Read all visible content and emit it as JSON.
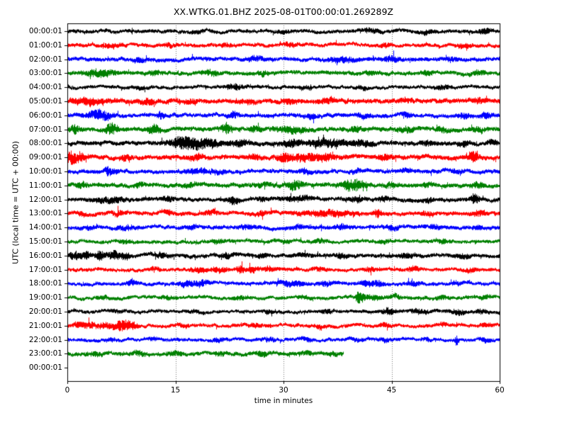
{
  "chart_data": {
    "type": "line",
    "subtype": "seismogram-dayplot",
    "title": "XX.WTKG.01.BHZ 2025-08-01T00:00:01.269289Z",
    "xlabel": "time in minutes",
    "ylabel": "UTC (local time = UTC + 00:00)",
    "xlim": [
      0,
      60
    ],
    "x_ticks": [
      0,
      15,
      30,
      45,
      60
    ],
    "grid": {
      "vertical_dotted_at": [
        15,
        30,
        45
      ]
    },
    "color_cycle": [
      "#000000",
      "#ff0000",
      "#0000ff",
      "#008000"
    ],
    "interval_minutes": 60,
    "final_tick_label": "00:00:01",
    "rows": [
      {
        "label": "00:00:01",
        "color": "#000000",
        "end": 60,
        "base": 2.6,
        "events": [
          [
            18,
            0.6,
            1.2
          ],
          [
            30,
            0.6,
            1.2
          ],
          [
            42,
            0.8,
            2
          ],
          [
            50,
            0.6,
            2
          ],
          [
            58,
            0.5,
            3
          ]
        ]
      },
      {
        "label": "01:00:01",
        "color": "#ff0000",
        "end": 60,
        "base": 2.6,
        "events": [
          [
            6,
            0.8,
            2.5
          ],
          [
            14,
            0.5,
            2
          ],
          [
            22,
            0.6,
            1.5
          ],
          [
            31,
            0.6,
            2
          ],
          [
            44,
            0.5,
            2
          ],
          [
            55,
            0.6,
            2
          ]
        ]
      },
      {
        "label": "02:00:01",
        "color": "#0000ff",
        "end": 60,
        "base": 2.8,
        "events": [
          [
            10,
            0.6,
            2
          ],
          [
            26,
            0.7,
            2.5
          ],
          [
            38,
            1.2,
            3
          ],
          [
            45,
            0.8,
            2.5
          ],
          [
            53,
            0.6,
            2
          ]
        ]
      },
      {
        "label": "03:00:01",
        "color": "#008000",
        "end": 60,
        "base": 2.8,
        "events": [
          [
            4.5,
            1.5,
            4
          ],
          [
            12,
            0.6,
            2
          ],
          [
            20,
            0.8,
            2.5
          ],
          [
            27,
            0.6,
            2
          ],
          [
            42,
            0.6,
            2
          ],
          [
            50,
            0.5,
            2
          ],
          [
            57,
            0.6,
            2.5
          ]
        ]
      },
      {
        "label": "04:00:01",
        "color": "#000000",
        "end": 60,
        "base": 2.4,
        "events": [
          [
            10,
            0.6,
            1.5
          ],
          [
            23,
            1.0,
            2.5
          ],
          [
            33,
            0.6,
            1.5
          ],
          [
            41,
            0.6,
            1.5
          ],
          [
            52,
            0.7,
            2
          ]
        ]
      },
      {
        "label": "05:00:01",
        "color": "#ff0000",
        "end": 60,
        "base": 3.2,
        "events": [
          [
            3,
            1.5,
            3.5
          ],
          [
            11,
            0.7,
            3
          ],
          [
            17,
            0.7,
            2
          ],
          [
            25,
            0.7,
            2
          ],
          [
            31,
            0.7,
            2.5
          ],
          [
            36,
            0.8,
            2
          ],
          [
            47,
            0.6,
            1.5
          ],
          [
            57,
            0.6,
            2
          ]
        ]
      },
      {
        "label": "06:00:01",
        "color": "#0000ff",
        "end": 60,
        "base": 2.8,
        "events": [
          [
            4.5,
            1.0,
            6.5
          ],
          [
            13,
            0.3,
            5
          ],
          [
            23,
            0.5,
            3.5
          ],
          [
            34,
            0.6,
            2.5
          ],
          [
            41,
            0.6,
            2.5
          ],
          [
            47,
            0.5,
            2
          ],
          [
            55,
            0.5,
            3
          ],
          [
            58,
            0.5,
            3
          ]
        ]
      },
      {
        "label": "07:00:01",
        "color": "#008000",
        "end": 60,
        "base": 3.0,
        "events": [
          [
            1,
            0.4,
            5
          ],
          [
            6,
            0.5,
            7
          ],
          [
            12,
            0.5,
            6
          ],
          [
            22,
            0.4,
            7
          ],
          [
            26,
            0.5,
            3
          ],
          [
            31,
            1.5,
            3
          ],
          [
            40,
            0.6,
            2.5
          ],
          [
            47,
            0.7,
            3
          ],
          [
            52,
            0.6,
            2.5
          ],
          [
            57,
            0.6,
            2.5
          ]
        ]
      },
      {
        "label": "08:00:01",
        "color": "#000000",
        "end": 60,
        "base": 3.0,
        "events": [
          [
            16,
            1.2,
            7
          ],
          [
            19,
            1.5,
            5
          ],
          [
            24,
            1.0,
            3
          ],
          [
            31,
            1.0,
            3.5
          ],
          [
            36,
            2.0,
            4
          ],
          [
            41,
            1.0,
            3
          ],
          [
            50,
            0.6,
            2
          ],
          [
            55,
            0.5,
            2.5
          ],
          [
            59,
            0.4,
            3
          ]
        ]
      },
      {
        "label": "09:00:01",
        "color": "#ff0000",
        "end": 60,
        "base": 3.2,
        "events": [
          [
            0.5,
            0.6,
            6
          ],
          [
            1.8,
            0.4,
            5
          ],
          [
            8,
            0.6,
            2
          ],
          [
            18,
            0.7,
            2.5
          ],
          [
            26,
            0.5,
            2.5
          ],
          [
            30,
            0.6,
            4
          ],
          [
            33,
            1.5,
            4
          ],
          [
            36,
            0.8,
            3
          ],
          [
            44,
            0.6,
            2.5
          ],
          [
            56,
            0.3,
            6
          ],
          [
            56.6,
            0.3,
            4
          ]
        ]
      },
      {
        "label": "10:00:01",
        "color": "#0000ff",
        "end": 60,
        "base": 2.8,
        "events": [
          [
            5.5,
            0.25,
            5.5
          ],
          [
            6.2,
            0.5,
            2
          ],
          [
            18,
            1.2,
            2.5
          ],
          [
            21,
            0.8,
            2
          ],
          [
            33,
            0.6,
            2.5
          ],
          [
            40,
            0.6,
            1.5
          ],
          [
            47,
            0.6,
            1.5
          ],
          [
            54,
            0.6,
            1.5
          ]
        ]
      },
      {
        "label": "11:00:01",
        "color": "#008000",
        "end": 60,
        "base": 3.0,
        "events": [
          [
            2,
            0.5,
            2.5
          ],
          [
            10,
            0.6,
            2
          ],
          [
            17,
            0.6,
            2
          ],
          [
            27,
            0.6,
            2
          ],
          [
            31.5,
            0.8,
            5
          ],
          [
            39,
            0.8,
            5.5
          ],
          [
            40.5,
            0.8,
            4
          ],
          [
            45,
            0.6,
            2.5
          ],
          [
            50,
            0.5,
            2
          ],
          [
            57,
            0.6,
            2.5
          ]
        ]
      },
      {
        "label": "12:00:01",
        "color": "#000000",
        "end": 60,
        "base": 2.8,
        "events": [
          [
            6,
            1.2,
            3
          ],
          [
            14,
            0.6,
            2
          ],
          [
            23,
            0.5,
            4.5
          ],
          [
            27,
            0.5,
            2
          ],
          [
            32,
            1.2,
            2.5
          ],
          [
            40,
            0.8,
            2
          ],
          [
            44,
            0.5,
            2.5
          ],
          [
            50,
            0.5,
            2
          ],
          [
            56.5,
            0.4,
            5.5
          ]
        ]
      },
      {
        "label": "13:00:01",
        "color": "#ff0000",
        "end": 60,
        "base": 2.8,
        "events": [
          [
            2,
            0.5,
            2
          ],
          [
            7,
            0.6,
            2.5
          ],
          [
            14,
            0.5,
            1.5
          ],
          [
            20,
            0.6,
            2
          ],
          [
            27,
            0.6,
            2
          ],
          [
            36,
            2.5,
            3
          ],
          [
            43,
            0.3,
            4.5
          ],
          [
            50,
            0.6,
            2
          ],
          [
            57,
            0.6,
            2.5
          ]
        ]
      },
      {
        "label": "14:00:01",
        "color": "#0000ff",
        "end": 60,
        "base": 2.8,
        "events": [
          [
            3,
            0.6,
            1.5
          ],
          [
            8,
            0.6,
            2
          ],
          [
            17,
            0.6,
            2
          ],
          [
            25,
            0.7,
            2
          ],
          [
            32,
            0.6,
            1.5
          ],
          [
            38,
            0.7,
            2.5
          ],
          [
            45,
            0.6,
            2
          ],
          [
            51,
            0.6,
            2
          ],
          [
            57,
            0.5,
            1.5
          ]
        ]
      },
      {
        "label": "15:00:01",
        "color": "#008000",
        "end": 60,
        "base": 2.5,
        "events": [
          [
            8,
            0.6,
            1.5
          ],
          [
            21,
            0.7,
            1.8
          ],
          [
            30,
            0.6,
            1.5
          ],
          [
            35,
            0.6,
            1.8
          ],
          [
            44,
            0.6,
            1.5
          ],
          [
            52,
            0.6,
            1.8
          ]
        ]
      },
      {
        "label": "16:00:01",
        "color": "#000000",
        "end": 60,
        "base": 2.8,
        "events": [
          [
            1,
            0.5,
            4.5
          ],
          [
            2.5,
            0.4,
            4
          ],
          [
            4.5,
            0.5,
            5
          ],
          [
            6.5,
            0.5,
            5.5
          ],
          [
            8,
            0.4,
            4
          ],
          [
            13,
            0.6,
            2.5
          ],
          [
            22,
            0.6,
            2.5
          ],
          [
            27,
            0.5,
            2
          ],
          [
            33,
            0.6,
            1.5
          ],
          [
            38,
            0.6,
            2
          ],
          [
            47,
            0.7,
            2
          ],
          [
            55,
            0.6,
            1.8
          ]
        ]
      },
      {
        "label": "17:00:01",
        "color": "#ff0000",
        "end": 60,
        "base": 2.5,
        "events": [
          [
            12,
            0.5,
            1.5
          ],
          [
            18,
            0.8,
            2
          ],
          [
            21,
            0.8,
            2.5
          ],
          [
            24,
            0.4,
            4.5
          ],
          [
            25.7,
            0.4,
            3.5
          ],
          [
            28,
            0.7,
            2.5
          ],
          [
            35,
            0.6,
            1.8
          ],
          [
            42,
            0.6,
            1.8
          ],
          [
            48,
            0.6,
            2
          ],
          [
            56,
            0.6,
            1.8
          ]
        ]
      },
      {
        "label": "18:00:01",
        "color": "#0000ff",
        "end": 60,
        "base": 2.5,
        "events": [
          [
            9,
            0.5,
            3
          ],
          [
            16.5,
            0.6,
            3.5
          ],
          [
            18.5,
            0.8,
            3.5
          ],
          [
            31,
            1.2,
            3
          ],
          [
            36,
            0.8,
            2.5
          ],
          [
            41.5,
            0.6,
            3.5
          ],
          [
            43,
            0.5,
            3
          ],
          [
            48,
            0.6,
            2
          ],
          [
            54,
            0.5,
            2
          ]
        ]
      },
      {
        "label": "19:00:01",
        "color": "#008000",
        "end": 60,
        "base": 2.5,
        "events": [
          [
            5,
            0.5,
            1.5
          ],
          [
            14,
            0.6,
            1.5
          ],
          [
            24,
            0.6,
            1.5
          ],
          [
            33,
            0.6,
            1.5
          ],
          [
            40.3,
            0.2,
            7
          ],
          [
            40.9,
            0.3,
            4
          ],
          [
            42.5,
            1.2,
            2
          ],
          [
            45.5,
            0.5,
            2
          ],
          [
            52,
            0.6,
            1.8
          ],
          [
            58,
            0.5,
            1.5
          ]
        ]
      },
      {
        "label": "20:00:01",
        "color": "#000000",
        "end": 60,
        "base": 2.4,
        "events": [
          [
            7,
            0.6,
            1.5
          ],
          [
            18,
            0.6,
            1.5
          ],
          [
            28,
            0.6,
            1.5
          ],
          [
            36,
            0.6,
            1.5
          ],
          [
            44.5,
            0.6,
            3.5
          ],
          [
            49,
            0.8,
            2.5
          ],
          [
            54,
            0.7,
            2.5
          ],
          [
            57.5,
            0.6,
            2
          ]
        ]
      },
      {
        "label": "21:00:01",
        "color": "#ff0000",
        "end": 60,
        "base": 2.5,
        "events": [
          [
            1.5,
            0.5,
            3
          ],
          [
            3,
            0.6,
            3.5
          ],
          [
            5,
            0.6,
            3
          ],
          [
            7.5,
            0.8,
            6
          ],
          [
            9,
            0.5,
            3
          ],
          [
            16,
            0.6,
            1.5
          ],
          [
            26,
            0.6,
            1.8
          ],
          [
            35,
            0.6,
            1.5
          ],
          [
            44,
            0.6,
            1.8
          ],
          [
            52,
            0.5,
            1.5
          ],
          [
            58,
            0.5,
            1.5
          ]
        ]
      },
      {
        "label": "22:00:01",
        "color": "#0000ff",
        "end": 60,
        "base": 2.4,
        "events": [
          [
            6,
            0.6,
            1.3
          ],
          [
            12,
            0.5,
            1.5
          ],
          [
            21,
            0.6,
            1.8
          ],
          [
            28,
            0.6,
            1.5
          ],
          [
            33,
            0.6,
            1.8
          ],
          [
            40,
            0.6,
            1.5
          ],
          [
            44,
            0.5,
            1.8
          ],
          [
            50,
            0.5,
            1.5
          ],
          [
            54,
            0.15,
            6
          ],
          [
            58,
            0.5,
            2
          ]
        ]
      },
      {
        "label": "23:00:01",
        "color": "#008000",
        "end": 38.3,
        "base": 2.8,
        "events": [
          [
            4,
            0.8,
            1.5
          ],
          [
            10,
            0.6,
            2
          ],
          [
            15,
            0.7,
            2
          ],
          [
            21,
            0.6,
            1.5
          ],
          [
            27,
            0.7,
            2
          ],
          [
            33,
            0.6,
            1.5
          ],
          [
            37,
            0.5,
            1.5
          ]
        ]
      }
    ]
  }
}
